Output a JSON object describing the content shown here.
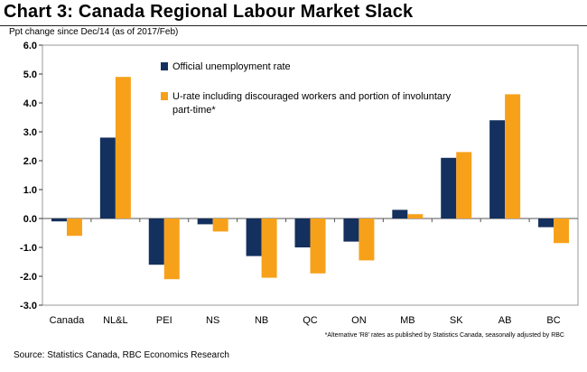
{
  "header": {
    "title": "Chart 3: Canada Regional Labour Market Slack",
    "y_unit": "Ppt change since Dec/14 (as of 2017/Feb)"
  },
  "footer": {
    "source": "Source: Statistics Canada, RBC Economics Research",
    "note": "*Alternative 'R8' rates as published by Statistics Canada, seasonally adjusted by RBC"
  },
  "chart_data": {
    "type": "bar",
    "title": "Chart 3: Canada Regional Labour Market Slack",
    "ylabel": "Ppt change since Dec/14 (as of 2017/Feb)",
    "xlabel": "",
    "ylim": [
      -3.0,
      6.0
    ],
    "yticks": [
      "6.0",
      "5.0",
      "4.0",
      "3.0",
      "2.0",
      "1.0",
      "0.0",
      "-1.0",
      "-2.0",
      "-3.0"
    ],
    "ytick_values": [
      6,
      5,
      4,
      3,
      2,
      1,
      0,
      -1,
      -2,
      -3
    ],
    "categories": [
      "Canada",
      "NL&L",
      "PEI",
      "NS",
      "NB",
      "QC",
      "ON",
      "MB",
      "SK",
      "AB",
      "BC"
    ],
    "series": [
      {
        "name": "Official unemployment rate",
        "color": "#14305e",
        "values": [
          -0.1,
          2.8,
          -1.6,
          -0.2,
          -1.3,
          -1.0,
          -0.8,
          0.3,
          2.1,
          3.4,
          -0.3
        ]
      },
      {
        "name": "U-rate including discouraged workers and portion of involuntary part-time*",
        "legend_lines": [
          "U-rate including discouraged workers and portion of involuntary",
          "part-time*"
        ],
        "color": "#f7a11a",
        "values": [
          -0.6,
          4.9,
          -2.1,
          -0.45,
          -2.05,
          -1.9,
          -1.45,
          0.15,
          2.3,
          4.3,
          -0.85
        ]
      }
    ],
    "grid": false,
    "legend_position": "top-center"
  }
}
